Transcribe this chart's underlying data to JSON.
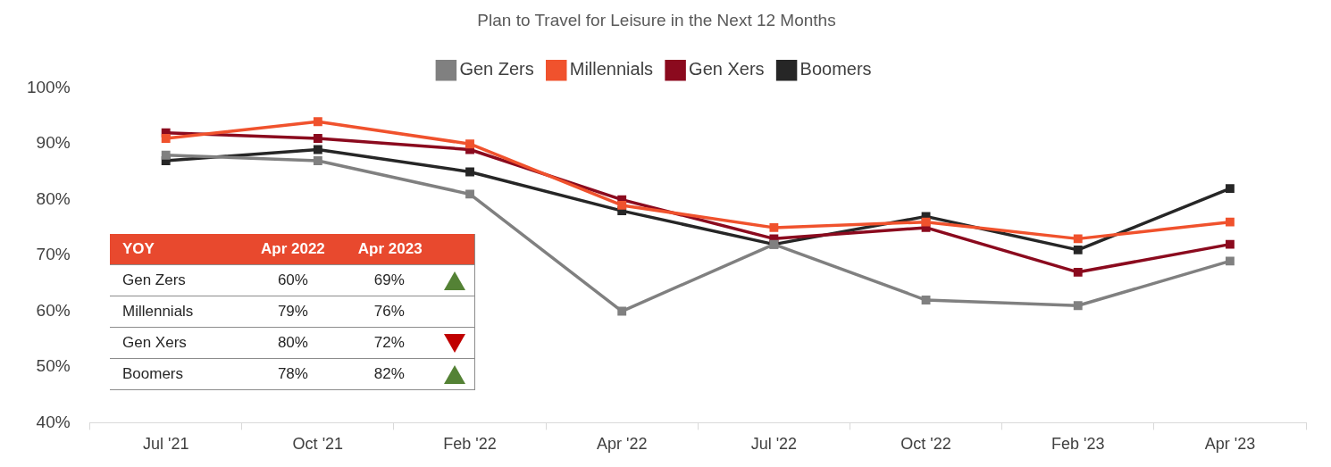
{
  "chart_data": [
    {
      "type": "line",
      "title": "Plan to Travel for Leisure in the Next 12 Months",
      "categories": [
        "Jul '21",
        "Oct '21",
        "Feb '22",
        "Apr '22",
        "Jul '22",
        "Oct '22",
        "Feb '23",
        "Apr '23"
      ],
      "series": [
        {
          "name": "Gen Zers",
          "color": "#808080",
          "values": [
            88,
            87,
            81,
            60,
            72,
            62,
            61,
            69
          ]
        },
        {
          "name": "Millennials",
          "color": "#f0522d",
          "values": [
            91,
            94,
            90,
            79,
            75,
            76,
            73,
            76
          ]
        },
        {
          "name": "Gen Xers",
          "color": "#8b0a1e",
          "values": [
            92,
            91,
            89,
            80,
            73,
            75,
            67,
            72
          ]
        },
        {
          "name": "Boomers",
          "color": "#262626",
          "values": [
            87,
            89,
            85,
            78,
            72,
            77,
            71,
            82
          ]
        }
      ],
      "ylim": [
        40,
        100
      ],
      "yticks": [
        {
          "value": 40,
          "label": "40%"
        },
        {
          "value": 50,
          "label": "50%"
        },
        {
          "value": 60,
          "label": "60%"
        },
        {
          "value": 70,
          "label": "70%"
        },
        {
          "value": 80,
          "label": "80%"
        },
        {
          "value": 90,
          "label": "90%"
        },
        {
          "value": 100,
          "label": "100%"
        }
      ],
      "grid": false,
      "legend": "top",
      "marker": "square",
      "line_style": "solid"
    },
    {
      "type": "other",
      "title": "YOY",
      "categories": [
        "Gen Zers",
        "Millennials",
        "Gen Xers",
        "Boomers"
      ],
      "series": [
        {
          "name": "Apr 2022",
          "values": [
            60,
            79,
            80,
            78
          ],
          "value_labels": [
            "60%",
            "79%",
            "80%",
            "78%"
          ]
        },
        {
          "name": "Apr 2023",
          "values": [
            69,
            76,
            72,
            82
          ],
          "value_labels": [
            "69%",
            "76%",
            "72%",
            "82%"
          ],
          "colors": [
            "#548235",
            null,
            "#c00000",
            "#548235"
          ]
        }
      ]
    }
  ]
}
